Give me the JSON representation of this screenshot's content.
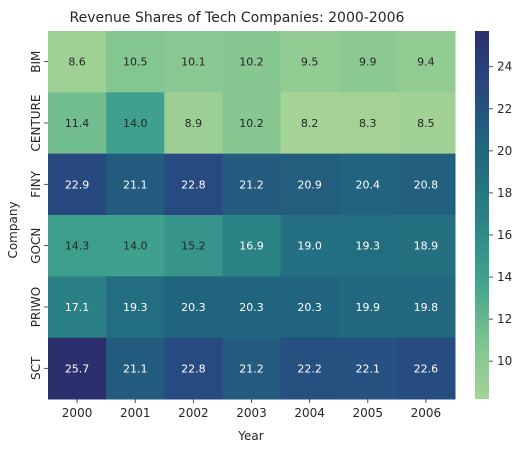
{
  "chart_data": {
    "type": "heatmap",
    "title": "Revenue Shares of Tech Companies: 2000-2006",
    "xlabel": "Year",
    "ylabel": "Company",
    "x": [
      "2000",
      "2001",
      "2002",
      "2003",
      "2004",
      "2005",
      "2006"
    ],
    "y": [
      "BIM",
      "CENTURE",
      "FINY",
      "GOCN",
      "PRIWO",
      "SCT"
    ],
    "values": [
      [
        8.6,
        10.5,
        10.1,
        10.2,
        9.5,
        9.9,
        9.4
      ],
      [
        11.4,
        14.0,
        8.9,
        10.2,
        8.2,
        8.3,
        8.5
      ],
      [
        22.9,
        21.1,
        22.8,
        21.2,
        20.9,
        20.4,
        20.8
      ],
      [
        14.3,
        14.0,
        15.2,
        16.9,
        19.0,
        19.3,
        18.9
      ],
      [
        17.1,
        19.3,
        20.3,
        20.3,
        20.3,
        19.9,
        19.8
      ],
      [
        25.7,
        21.1,
        22.8,
        21.2,
        22.2,
        22.1,
        22.6
      ]
    ],
    "colorbar": {
      "range": [
        8.2,
        25.7
      ],
      "ticks": [
        10,
        12,
        14,
        16,
        18,
        20,
        22,
        24
      ],
      "colormap": "crest",
      "low_color": "#a5d395",
      "high_color": "#2c2f6e"
    },
    "annotations": true,
    "grid": false,
    "legend": "colorbar-right"
  }
}
